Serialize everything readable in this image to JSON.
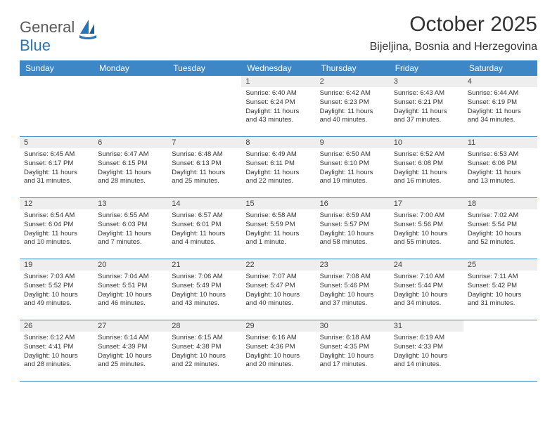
{
  "brand": {
    "word1": "General",
    "word2": "Blue"
  },
  "title": "October 2025",
  "location": "Bijeljina, Bosnia and Herzegovina",
  "colors": {
    "header_bg": "#3d87c7",
    "header_text": "#ffffff",
    "daynum_bg": "#eeeeee",
    "rule": "#3d87c7",
    "brand_gray": "#5b5b5b",
    "brand_blue": "#2776b8",
    "text": "#333333",
    "background": "#ffffff"
  },
  "day_names": [
    "Sunday",
    "Monday",
    "Tuesday",
    "Wednesday",
    "Thursday",
    "Friday",
    "Saturday"
  ],
  "weeks": [
    [
      null,
      null,
      null,
      {
        "n": "1",
        "sunrise": "6:40 AM",
        "sunset": "6:24 PM",
        "daylight": "11 hours and 43 minutes."
      },
      {
        "n": "2",
        "sunrise": "6:42 AM",
        "sunset": "6:23 PM",
        "daylight": "11 hours and 40 minutes."
      },
      {
        "n": "3",
        "sunrise": "6:43 AM",
        "sunset": "6:21 PM",
        "daylight": "11 hours and 37 minutes."
      },
      {
        "n": "4",
        "sunrise": "6:44 AM",
        "sunset": "6:19 PM",
        "daylight": "11 hours and 34 minutes."
      }
    ],
    [
      {
        "n": "5",
        "sunrise": "6:45 AM",
        "sunset": "6:17 PM",
        "daylight": "11 hours and 31 minutes."
      },
      {
        "n": "6",
        "sunrise": "6:47 AM",
        "sunset": "6:15 PM",
        "daylight": "11 hours and 28 minutes."
      },
      {
        "n": "7",
        "sunrise": "6:48 AM",
        "sunset": "6:13 PM",
        "daylight": "11 hours and 25 minutes."
      },
      {
        "n": "8",
        "sunrise": "6:49 AM",
        "sunset": "6:11 PM",
        "daylight": "11 hours and 22 minutes."
      },
      {
        "n": "9",
        "sunrise": "6:50 AM",
        "sunset": "6:10 PM",
        "daylight": "11 hours and 19 minutes."
      },
      {
        "n": "10",
        "sunrise": "6:52 AM",
        "sunset": "6:08 PM",
        "daylight": "11 hours and 16 minutes."
      },
      {
        "n": "11",
        "sunrise": "6:53 AM",
        "sunset": "6:06 PM",
        "daylight": "11 hours and 13 minutes."
      }
    ],
    [
      {
        "n": "12",
        "sunrise": "6:54 AM",
        "sunset": "6:04 PM",
        "daylight": "11 hours and 10 minutes."
      },
      {
        "n": "13",
        "sunrise": "6:55 AM",
        "sunset": "6:03 PM",
        "daylight": "11 hours and 7 minutes."
      },
      {
        "n": "14",
        "sunrise": "6:57 AM",
        "sunset": "6:01 PM",
        "daylight": "11 hours and 4 minutes."
      },
      {
        "n": "15",
        "sunrise": "6:58 AM",
        "sunset": "5:59 PM",
        "daylight": "11 hours and 1 minute."
      },
      {
        "n": "16",
        "sunrise": "6:59 AM",
        "sunset": "5:57 PM",
        "daylight": "10 hours and 58 minutes."
      },
      {
        "n": "17",
        "sunrise": "7:00 AM",
        "sunset": "5:56 PM",
        "daylight": "10 hours and 55 minutes."
      },
      {
        "n": "18",
        "sunrise": "7:02 AM",
        "sunset": "5:54 PM",
        "daylight": "10 hours and 52 minutes."
      }
    ],
    [
      {
        "n": "19",
        "sunrise": "7:03 AM",
        "sunset": "5:52 PM",
        "daylight": "10 hours and 49 minutes."
      },
      {
        "n": "20",
        "sunrise": "7:04 AM",
        "sunset": "5:51 PM",
        "daylight": "10 hours and 46 minutes."
      },
      {
        "n": "21",
        "sunrise": "7:06 AM",
        "sunset": "5:49 PM",
        "daylight": "10 hours and 43 minutes."
      },
      {
        "n": "22",
        "sunrise": "7:07 AM",
        "sunset": "5:47 PM",
        "daylight": "10 hours and 40 minutes."
      },
      {
        "n": "23",
        "sunrise": "7:08 AM",
        "sunset": "5:46 PM",
        "daylight": "10 hours and 37 minutes."
      },
      {
        "n": "24",
        "sunrise": "7:10 AM",
        "sunset": "5:44 PM",
        "daylight": "10 hours and 34 minutes."
      },
      {
        "n": "25",
        "sunrise": "7:11 AM",
        "sunset": "5:42 PM",
        "daylight": "10 hours and 31 minutes."
      }
    ],
    [
      {
        "n": "26",
        "sunrise": "6:12 AM",
        "sunset": "4:41 PM",
        "daylight": "10 hours and 28 minutes."
      },
      {
        "n": "27",
        "sunrise": "6:14 AM",
        "sunset": "4:39 PM",
        "daylight": "10 hours and 25 minutes."
      },
      {
        "n": "28",
        "sunrise": "6:15 AM",
        "sunset": "4:38 PM",
        "daylight": "10 hours and 22 minutes."
      },
      {
        "n": "29",
        "sunrise": "6:16 AM",
        "sunset": "4:36 PM",
        "daylight": "10 hours and 20 minutes."
      },
      {
        "n": "30",
        "sunrise": "6:18 AM",
        "sunset": "4:35 PM",
        "daylight": "10 hours and 17 minutes."
      },
      {
        "n": "31",
        "sunrise": "6:19 AM",
        "sunset": "4:33 PM",
        "daylight": "10 hours and 14 minutes."
      },
      null
    ]
  ],
  "labels": {
    "sunrise": "Sunrise:",
    "sunset": "Sunset:",
    "daylight": "Daylight:"
  }
}
